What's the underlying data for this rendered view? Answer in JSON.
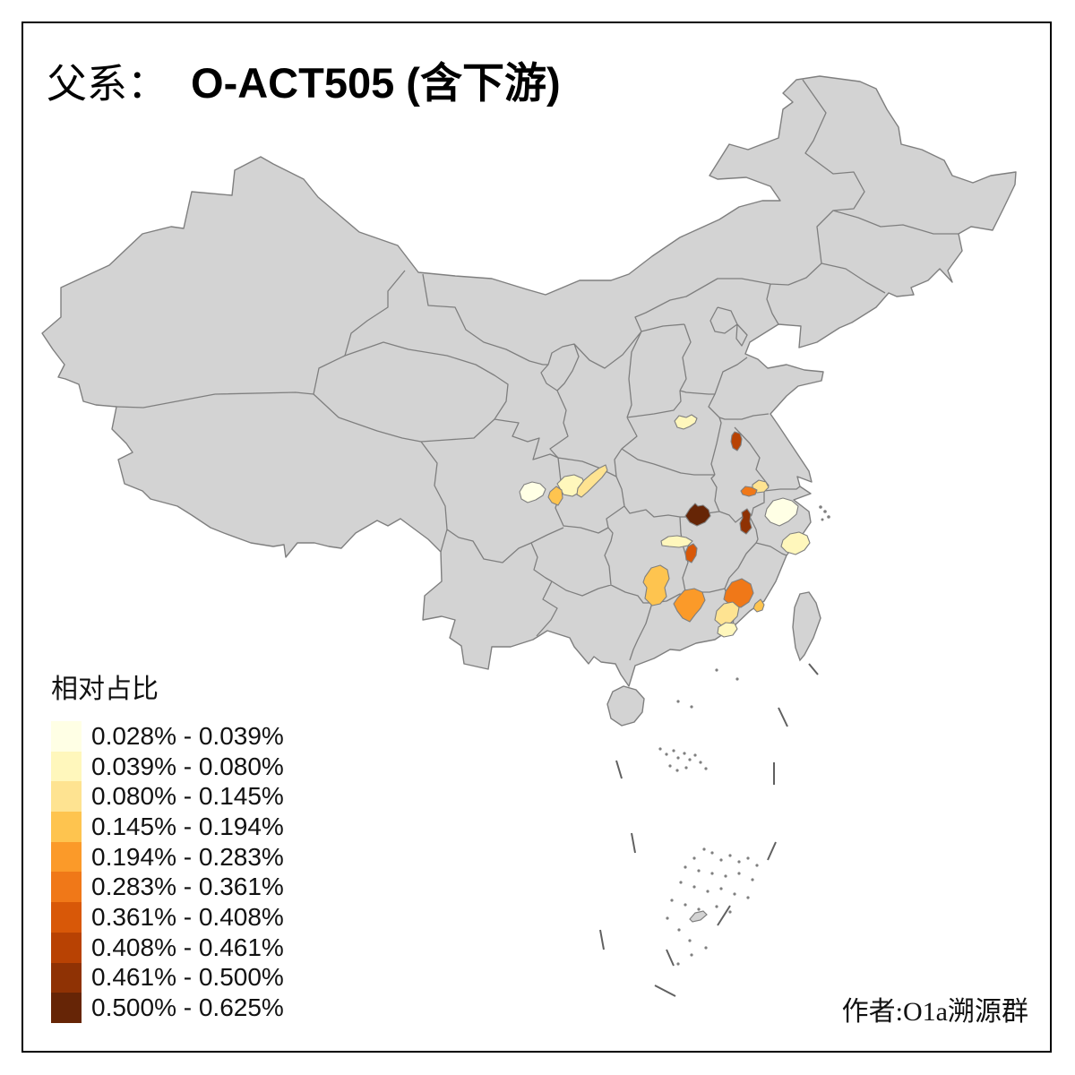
{
  "title": {
    "prefix": "父系：",
    "main": "O-ACT505 (含下游)"
  },
  "legend": {
    "title": "相对占比",
    "entries": [
      {
        "label": "0.028% - 0.039%",
        "color": "#FFFFE5"
      },
      {
        "label": "0.039% - 0.080%",
        "color": "#FFF7BC"
      },
      {
        "label": "0.080% - 0.145%",
        "color": "#FEE391"
      },
      {
        "label": "0.145% - 0.194%",
        "color": "#FEC44F"
      },
      {
        "label": "0.194% - 0.283%",
        "color": "#FB9A29"
      },
      {
        "label": "0.283% - 0.361%",
        "color": "#F07818"
      },
      {
        "label": "0.361% - 0.408%",
        "color": "#D85808"
      },
      {
        "label": "0.408% - 0.461%",
        "color": "#B84203"
      },
      {
        "label": "0.461% - 0.500%",
        "color": "#8F3204"
      },
      {
        "label": "0.500% - 0.625%",
        "color": "#662506"
      }
    ]
  },
  "attribution": {
    "text": "作者:O1a溯源群"
  },
  "map": {
    "background": "#FFFFFF",
    "land_fill": "#D3D3D3",
    "border_color": "#7F7F7F",
    "dash_color": "#606060",
    "frame_color": "#000000",
    "regions": [
      {
        "id": "region-01",
        "level": 2,
        "range": "0.039% - 0.080%",
        "color": "#FFF7BC"
      },
      {
        "id": "region-02",
        "level": 8,
        "range": "0.408% - 0.461%",
        "color": "#B84203"
      },
      {
        "id": "region-03",
        "level": 1,
        "range": "0.028% - 0.039%",
        "color": "#FFFFE5"
      },
      {
        "id": "region-04",
        "level": 2,
        "range": "0.039% - 0.080%",
        "color": "#FFF7BC"
      },
      {
        "id": "region-05",
        "level": 4,
        "range": "0.145% - 0.194%",
        "color": "#FEC44F"
      },
      {
        "id": "region-06",
        "level": 3,
        "range": "0.080% - 0.145%",
        "color": "#FEE391"
      },
      {
        "id": "region-07",
        "level": 3,
        "range": "0.080% - 0.145%",
        "color": "#FEE391"
      },
      {
        "id": "region-08",
        "level": 6,
        "range": "0.283% - 0.361%",
        "color": "#F07818"
      },
      {
        "id": "region-09",
        "level": 10,
        "range": "0.500% - 0.625%",
        "color": "#662506"
      },
      {
        "id": "region-10",
        "level": 9,
        "range": "0.461% - 0.500%",
        "color": "#8F3204"
      },
      {
        "id": "region-11",
        "level": 1,
        "range": "0.028% - 0.039%",
        "color": "#FFFFE5"
      },
      {
        "id": "region-12",
        "level": 2,
        "range": "0.039% - 0.080%",
        "color": "#FFF7BC"
      },
      {
        "id": "region-13",
        "level": 2,
        "range": "0.039% - 0.080%",
        "color": "#FFF7BC"
      },
      {
        "id": "region-14",
        "level": 7,
        "range": "0.361% - 0.408%",
        "color": "#D85808"
      },
      {
        "id": "region-15",
        "level": 4,
        "range": "0.145% - 0.194%",
        "color": "#FEC44F"
      },
      {
        "id": "region-16",
        "level": 5,
        "range": "0.194% - 0.283%",
        "color": "#FB9A29"
      },
      {
        "id": "region-17",
        "level": 6,
        "range": "0.283% - 0.361%",
        "color": "#F07818"
      },
      {
        "id": "region-18",
        "level": 4,
        "range": "0.145% - 0.194%",
        "color": "#FEC44F"
      },
      {
        "id": "region-19",
        "level": 3,
        "range": "0.080% - 0.145%",
        "color": "#FEE391"
      },
      {
        "id": "region-20",
        "level": 2,
        "range": "0.039% - 0.080%",
        "color": "#FFF7BC"
      }
    ]
  }
}
